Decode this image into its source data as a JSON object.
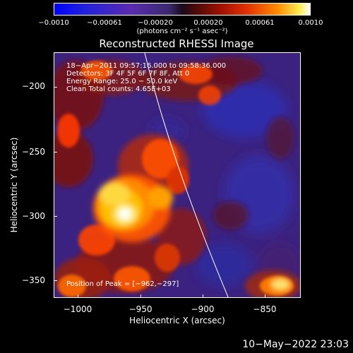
{
  "colorbar": {
    "ticks": [
      "−0.0010",
      "−0.00061",
      "−0.00020",
      "0.00020",
      "0.00061",
      "0.0010"
    ],
    "unit_label": "(photons cm⁻² s⁻¹ asec⁻²)"
  },
  "image": {
    "title": "Reconstructed RHESSI Image",
    "info_lines": [
      "18−Apr−2011 09:57:16.000 to 09:58:36.000",
      "Detectors: 3F 4F 5F 6F 7F 8F, Att 0",
      "Energy Range: 25.0 − 50.0 keV",
      "Clean     Total counts: 4.65E+03"
    ],
    "peak_label": "Position of Peak = [−962,−297]",
    "xlabel": "Heliocentric X (arcsec)",
    "ylabel": "Heliocentric Y (arcsec)",
    "xticks": [
      "−1000",
      "−950",
      "−900",
      "−850"
    ],
    "yticks": [
      "−200",
      "−250",
      "−300",
      "−350"
    ]
  },
  "footer": {
    "timestamp": "10−May−2022 23:03"
  }
}
